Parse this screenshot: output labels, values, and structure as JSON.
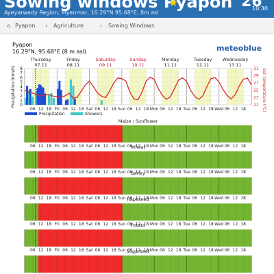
{
  "header": {
    "title": "Sowing windows Pyapon",
    "region": "Ayeyarwady Region, Myanmar, 16.29°N 95.68°E, 8m asl",
    "big_number": "26",
    "clock": "10:30"
  },
  "breadcrumb": [
    "Pyapon",
    "Agriculture",
    "Sowing Windows"
  ],
  "location": {
    "name": "Pyapon",
    "coords": "16.29°N, 95.68°E (8 m asl)"
  },
  "logo_text": "meteoblue",
  "days": [
    {
      "name": "Thursday",
      "date": "07.11",
      "weekend": false
    },
    {
      "name": "Friday",
      "date": "08.11",
      "weekend": false
    },
    {
      "name": "Saturday",
      "date": "09.11",
      "weekend": true
    },
    {
      "name": "Sunday",
      "date": "10.11",
      "weekend": true
    },
    {
      "name": "Monday",
      "date": "11.11",
      "weekend": false
    },
    {
      "name": "Tuesday",
      "date": "12.11",
      "weekend": false
    },
    {
      "name": "Wednesday",
      "date": "13.11",
      "weekend": false
    }
  ],
  "time_axis": [
    "06",
    "12",
    "18",
    "Fri",
    "06",
    "12",
    "18",
    "Sat",
    "06",
    "12",
    "18",
    "Sun",
    "06",
    "12",
    "18",
    "Mon",
    "06",
    "12",
    "18",
    "Tue",
    "06",
    "12",
    "18",
    "Wed",
    "06",
    "12",
    "18"
  ],
  "chart_data": {
    "type": "bar",
    "ylabel": "Precipitation (mm/h)",
    "y2label": "Soil temperature (°C)",
    "ylim": [
      0,
      8
    ],
    "y2lim": [
      21,
      31
    ],
    "yticks": [
      "0",
      "1",
      "2",
      "3",
      "4",
      "5",
      "6",
      "7",
      "8"
    ],
    "y2ticks": [
      "21",
      "23",
      "25",
      "27",
      "29",
      "31"
    ],
    "legend": [
      "Precipitation",
      "Showers"
    ],
    "precipitation_bars": [
      {
        "t": 0.3,
        "v": 4.2
      },
      {
        "t": 0.7,
        "v": 3.5
      },
      {
        "t": 1.6,
        "v": 3.7
      },
      {
        "t": 1.8,
        "v": 4.5
      },
      {
        "t": 1.95,
        "v": 4.4
      },
      {
        "t": 2.1,
        "v": 4.0
      },
      {
        "t": 2.3,
        "v": 3.8
      },
      {
        "t": 2.5,
        "v": 2.5
      },
      {
        "t": 4.1,
        "v": 3.5
      },
      {
        "t": 4.3,
        "v": 5.3
      },
      {
        "t": 4.5,
        "v": 3.3
      },
      {
        "t": 5.1,
        "v": 1.0
      },
      {
        "t": 5.3,
        "v": 1.2
      },
      {
        "t": 6.2,
        "v": 1.3
      }
    ],
    "shower_bars": [
      {
        "t": 0.1,
        "v": 1.5
      },
      {
        "t": 0.5,
        "v": 3.2
      },
      {
        "t": 1.0,
        "v": 1.8
      },
      {
        "t": 1.4,
        "v": 3.0
      },
      {
        "t": 3.0,
        "v": 2.2
      },
      {
        "t": 3.3,
        "v": 2.6
      },
      {
        "t": 3.6,
        "v": 1.5
      },
      {
        "t": 5.7,
        "v": 5.6
      },
      {
        "t": 6.0,
        "v": 4.2
      },
      {
        "t": 9.5,
        "v": 1.0
      }
    ],
    "soil_temperature": [
      {
        "t": 0,
        "v": 24.9
      },
      {
        "t": 2,
        "v": 24.2
      },
      {
        "t": 4,
        "v": 23.4
      },
      {
        "t": 5,
        "v": 23.8
      },
      {
        "t": 6,
        "v": 23.8
      },
      {
        "t": 7,
        "v": 23.4
      },
      {
        "t": 8,
        "v": 23.2
      },
      {
        "t": 9,
        "v": 23.0
      },
      {
        "t": 10,
        "v": 23.5
      },
      {
        "t": 11,
        "v": 24.2
      },
      {
        "t": 12,
        "v": 22.8
      },
      {
        "t": 13,
        "v": 23.1
      },
      {
        "t": 14,
        "v": 24.8
      },
      {
        "t": 15,
        "v": 26.5
      },
      {
        "t": 16,
        "v": 27.5
      },
      {
        "t": 17,
        "v": 26.0
      },
      {
        "t": 18,
        "v": 24.2
      },
      {
        "t": 19,
        "v": 23.4
      },
      {
        "t": 20,
        "v": 23.0
      },
      {
        "t": 21,
        "v": 24.8
      },
      {
        "t": 22,
        "v": 27.0
      },
      {
        "t": 23,
        "v": 28.4
      },
      {
        "t": 24,
        "v": 28.2
      },
      {
        "t": 25,
        "v": 27.5
      },
      {
        "t": 26,
        "v": 24.5
      },
      {
        "t": 27,
        "v": 22.6
      },
      {
        "t": 28,
        "v": 22.4
      },
      {
        "t": 29,
        "v": 24.6
      },
      {
        "t": 30,
        "v": 27.5
      },
      {
        "t": 31,
        "v": 28.6
      },
      {
        "t": 32,
        "v": 28.0
      },
      {
        "t": 33,
        "v": 25.5
      },
      {
        "t": 34,
        "v": 23.6
      },
      {
        "t": 35,
        "v": 22.5
      },
      {
        "t": 36,
        "v": 23.2
      },
      {
        "t": 37,
        "v": 25.5
      },
      {
        "t": 38,
        "v": 27.8
      },
      {
        "t": 39,
        "v": 28.4
      },
      {
        "t": 40,
        "v": 27.5
      },
      {
        "t": 41,
        "v": 25.0
      },
      {
        "t": 42,
        "v": 23.3
      },
      {
        "t": 43,
        "v": 22.5
      },
      {
        "t": 44,
        "v": 23.5
      },
      {
        "t": 45,
        "v": 26.0
      },
      {
        "t": 46,
        "v": 28.2
      },
      {
        "t": 47,
        "v": 28.5
      },
      {
        "t": 48,
        "v": 27.3
      },
      {
        "t": 49,
        "v": 25.2
      },
      {
        "t": 50,
        "v": 23.6
      },
      {
        "t": 51,
        "v": 22.6
      },
      {
        "t": 52,
        "v": 23.8
      },
      {
        "t": 53,
        "v": 26.2
      },
      {
        "t": 54,
        "v": 28.0
      },
      {
        "t": 55,
        "v": 28.4
      },
      {
        "t": 56,
        "v": 26.5
      }
    ]
  },
  "crops": [
    {
      "name": "Maize / Sunflower",
      "red_from": 0.42,
      "red_to": 3.02
    },
    {
      "name": "Wheat",
      "red_from": 0.42,
      "red_to": 3.02
    },
    {
      "name": "Barley",
      "red_from": 0.42,
      "red_to": 3.02
    },
    {
      "name": "Rapeseed",
      "red_from": 0.42,
      "red_to": 3.02
    },
    {
      "name": "Potato",
      "red_from": 0.42,
      "red_to": 3.02
    },
    {
      "name": "Sugarbeet",
      "red_from": 0.42,
      "red_to": 3.02
    }
  ],
  "colors": {
    "header_bg": "#2b6fb3",
    "precipitation": "#1f4ed8",
    "showers": "#40c8c8",
    "temperature": "#d42a2a",
    "unsuitable": "#ef2b2b",
    "suitable": "#75b431",
    "daylight": "#f3f7c0",
    "weekend": "#c8102e"
  }
}
